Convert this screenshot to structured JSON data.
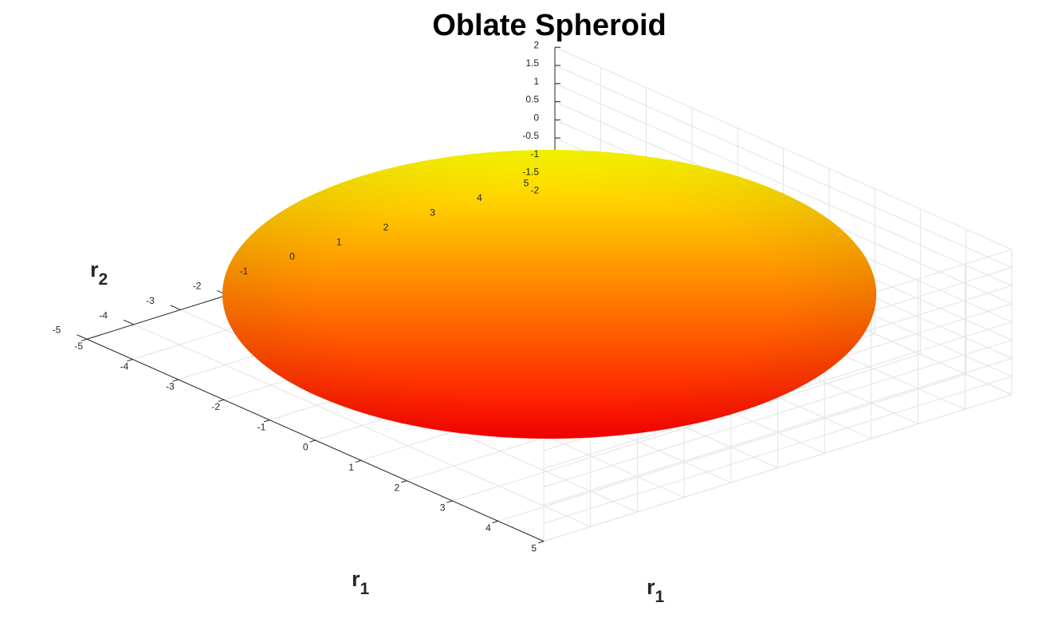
{
  "chart_data": {
    "type": "surface",
    "title": "Oblate Spheroid",
    "surface": {
      "shape": "oblate spheroid",
      "center": [
        0,
        0,
        0
      ],
      "semi_axes": {
        "x": 5,
        "y": 5,
        "z": 2
      },
      "colormap": "autumn",
      "colormap_start": "#ff0000",
      "colormap_end": "#ffff00",
      "shading": "interp",
      "edge_color": "none"
    },
    "axes": {
      "x": {
        "label_main": "r",
        "label_sub": "1",
        "lim": [
          -5,
          5
        ],
        "ticks": [
          -5,
          -4,
          -3,
          -2,
          -1,
          0,
          1,
          2,
          3,
          4,
          5
        ]
      },
      "y": {
        "label_main": "r",
        "label_sub": "1",
        "lim": [
          -5,
          5
        ],
        "ticks": [
          -5,
          -4,
          -3,
          -2,
          -1,
          0,
          1,
          2,
          3,
          4,
          5
        ]
      },
      "z": {
        "label_main": "r",
        "label_sub": "2",
        "lim": [
          -2,
          2
        ],
        "ticks": [
          -2,
          -1.5,
          -1,
          -0.5,
          0,
          0.5,
          1,
          1.5,
          2
        ]
      }
    },
    "grid": true,
    "box": false
  },
  "colors": {
    "grid": "#e3e3e3",
    "axis": "#262626",
    "background": "#ffffff"
  }
}
